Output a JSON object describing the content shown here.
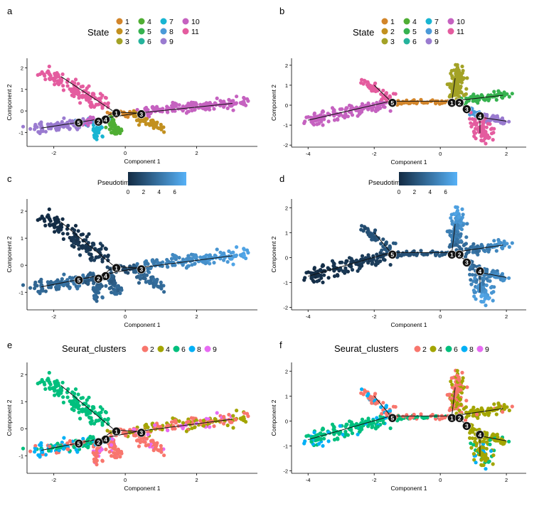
{
  "figure": {
    "panels": [
      {
        "id": "a",
        "letter": "a",
        "color_mode": "state",
        "legend": {
          "kind": "categorical",
          "title": "State",
          "placement": "top",
          "entries": [
            {
              "label": "1",
              "color": "#d2852a"
            },
            {
              "label": "2",
              "color": "#c2901f"
            },
            {
              "label": "3",
              "color": "#a3a226"
            },
            {
              "label": "4",
              "color": "#4fae33"
            },
            {
              "label": "5",
              "color": "#36b24f"
            },
            {
              "label": "6",
              "color": "#25b39c"
            },
            {
              "label": "7",
              "color": "#18b5d2"
            },
            {
              "label": "8",
              "color": "#4a9ad8"
            },
            {
              "label": "9",
              "color": "#9a7bd0"
            },
            {
              "label": "10",
              "color": "#c562c0"
            },
            {
              "label": "11",
              "color": "#e45c9f"
            }
          ]
        }
      },
      {
        "id": "b",
        "letter": "b",
        "color_mode": "state",
        "legend": {
          "kind": "categorical",
          "title": "State",
          "placement": "top",
          "entries": [
            {
              "label": "1",
              "color": "#d2852a"
            },
            {
              "label": "2",
              "color": "#c2901f"
            },
            {
              "label": "3",
              "color": "#a3a226"
            },
            {
              "label": "4",
              "color": "#4fae33"
            },
            {
              "label": "5",
              "color": "#36b24f"
            },
            {
              "label": "6",
              "color": "#25b39c"
            },
            {
              "label": "7",
              "color": "#18b5d2"
            },
            {
              "label": "8",
              "color": "#4a9ad8"
            },
            {
              "label": "9",
              "color": "#9a7bd0"
            },
            {
              "label": "10",
              "color": "#c562c0"
            },
            {
              "label": "11",
              "color": "#e45c9f"
            }
          ]
        }
      },
      {
        "id": "c",
        "letter": "c",
        "color_mode": "pseudotime",
        "legend": {
          "kind": "gradient",
          "title": "Pseudotime",
          "placement": "top",
          "ticks": [
            "0",
            "2",
            "4",
            "6"
          ],
          "range": [
            0,
            7.5
          ],
          "colors": [
            "#132b43",
            "#56b1f7"
          ]
        }
      },
      {
        "id": "d",
        "letter": "d",
        "color_mode": "pseudotime",
        "legend": {
          "kind": "gradient",
          "title": "Pseudotime",
          "placement": "top",
          "ticks": [
            "0",
            "2",
            "4",
            "6"
          ],
          "range": [
            0,
            7.5
          ],
          "colors": [
            "#132b43",
            "#56b1f7"
          ]
        }
      },
      {
        "id": "e",
        "letter": "e",
        "color_mode": "cluster",
        "legend": {
          "kind": "categorical",
          "title": "Seurat_clusters",
          "placement": "top",
          "entries": [
            {
              "label": "2",
              "color": "#f8766d"
            },
            {
              "label": "4",
              "color": "#a3a500"
            },
            {
              "label": "6",
              "color": "#00bf7d"
            },
            {
              "label": "8",
              "color": "#00b0f6"
            },
            {
              "label": "9",
              "color": "#e76bf3"
            }
          ]
        }
      },
      {
        "id": "f",
        "letter": "f",
        "color_mode": "cluster",
        "legend": {
          "kind": "categorical",
          "title": "Seurat_clusters",
          "placement": "top",
          "entries": [
            {
              "label": "2",
              "color": "#f8766d"
            },
            {
              "label": "4",
              "color": "#a3a500"
            },
            {
              "label": "6",
              "color": "#00bf7d"
            },
            {
              "label": "8",
              "color": "#00b0f6"
            },
            {
              "label": "9",
              "color": "#e76bf3"
            }
          ]
        }
      }
    ]
  },
  "chart_data": [
    {
      "panel": "a",
      "type": "scatter",
      "title": "",
      "xlabel": "Component 1",
      "ylabel": "Component 2",
      "xlim": [
        -2.75,
        3.7
      ],
      "ylim": [
        -1.65,
        2.45
      ],
      "xticks": [
        -2,
        0,
        2
      ],
      "yticks": [
        -1,
        0,
        1,
        2
      ],
      "grid": false,
      "legend_placement": "top",
      "trajectory": [
        [
          -1.8,
          1.6
        ],
        [
          -0.3,
          -0.05
        ],
        [
          -0.3,
          -0.05
        ],
        [
          0.35,
          -0.1
        ],
        [
          0.35,
          -0.1
        ],
        [
          3.0,
          0.35
        ],
        [
          -0.3,
          -0.05
        ],
        [
          -0.75,
          -0.45
        ],
        [
          -2.35,
          -0.8
        ],
        [
          0.35,
          -0.1
        ],
        [
          0.95,
          -0.65
        ]
      ],
      "branch_points": [
        {
          "label": "1",
          "x": -0.25,
          "y": -0.1
        },
        {
          "label": "3",
          "x": 0.45,
          "y": -0.15
        },
        {
          "label": "4",
          "x": -0.55,
          "y": -0.4
        },
        {
          "label": "2",
          "x": -0.75,
          "y": -0.5
        },
        {
          "label": "5",
          "x": -1.3,
          "y": -0.55
        }
      ],
      "segments": [
        {
          "state": "11",
          "from": [
            -2.3,
            1.9
          ],
          "to": [
            -0.55,
            0.15
          ],
          "spread": 0.15,
          "count": 130,
          "pt": [
            0.0,
            0.9
          ],
          "cl": {
            "9": 0,
            "6": 1
          }
        },
        {
          "state": "1",
          "from": [
            -0.45,
            -0.1
          ],
          "to": [
            0.3,
            -0.15
          ],
          "spread": 0.06,
          "count": 25,
          "pt": [
            1.6,
            1.9
          ],
          "cl": {
            "2": 0.6,
            "4": 0.4
          }
        },
        {
          "state": "10",
          "from": [
            0.35,
            -0.05
          ],
          "to": [
            3.35,
            0.4
          ],
          "spread": 0.11,
          "count": 160,
          "pt": [
            4.2,
            6.8
          ],
          "cl": {
            "2": 0.4,
            "4": 0.5,
            "9": 0.1
          }
        },
        {
          "state": "2",
          "from": [
            0.3,
            -0.2
          ],
          "to": [
            1.0,
            -0.75
          ],
          "spread": 0.09,
          "count": 55,
          "pt": [
            3.0,
            3.8
          ],
          "cl": {
            "2": 0.9,
            "9": 0.1
          }
        },
        {
          "state": "4",
          "from": [
            -0.45,
            -0.35
          ],
          "to": [
            -0.2,
            -1.1
          ],
          "spread": 0.08,
          "count": 55,
          "pt": [
            2.6,
            3.6
          ],
          "cl": {
            "2": 0.9,
            "9": 0.1
          }
        },
        {
          "state": "7",
          "from": [
            -0.75,
            -0.5
          ],
          "to": [
            -0.8,
            -1.25
          ],
          "spread": 0.07,
          "count": 45,
          "pt": [
            2.8,
            3.7
          ],
          "cl": {
            "2": 0.85,
            "9": 0.15
          }
        },
        {
          "state": "8",
          "from": [
            -1.25,
            -0.6
          ],
          "to": [
            -0.5,
            -0.4
          ],
          "spread": 0.07,
          "count": 30,
          "pt": [
            2.2,
            2.5
          ],
          "cl": {
            "8": 0.6,
            "6": 0.4
          }
        },
        {
          "state": "10",
          "from": [
            -1.25,
            -0.6
          ],
          "to": [
            -0.85,
            -0.25
          ],
          "spread": 0.07,
          "count": 18,
          "pt": [
            2.6,
            3.0
          ],
          "cl": {
            "6": 1
          }
        },
        {
          "state": "9",
          "from": [
            -2.5,
            -0.85
          ],
          "to": [
            -1.3,
            -0.6
          ],
          "spread": 0.12,
          "count": 85,
          "pt": [
            3.2,
            4.2
          ],
          "cl": {
            "8": 0.55,
            "6": 0.25,
            "2": 0.2
          }
        }
      ]
    },
    {
      "panel": "b",
      "type": "scatter",
      "title": "",
      "xlabel": "Component 1",
      "ylabel": "Component 2",
      "xlim": [
        -4.5,
        2.6
      ],
      "ylim": [
        -2.1,
        2.35
      ],
      "xticks": [
        -4,
        -2,
        0,
        2
      ],
      "yticks": [
        -2,
        -1,
        0,
        1,
        2
      ],
      "grid": false,
      "legend_placement": "top",
      "trajectory": [
        [
          -4.0,
          -0.75
        ],
        [
          -1.5,
          0.2
        ],
        [
          -1.5,
          0.2
        ],
        [
          -2.0,
          1.0
        ],
        [
          -1.5,
          0.2
        ],
        [
          0.35,
          0.2
        ],
        [
          0.35,
          0.2
        ],
        [
          0.45,
          1.35
        ],
        [
          0.35,
          0.2
        ],
        [
          1.9,
          0.5
        ],
        [
          0.35,
          0.2
        ],
        [
          0.85,
          -0.15
        ],
        [
          1.2,
          -0.6
        ],
        [
          2.0,
          -0.8
        ],
        [
          1.2,
          -0.6
        ],
        [
          1.2,
          -1.4
        ]
      ],
      "branch_points": [
        {
          "label": "5",
          "x": -1.45,
          "y": 0.12
        },
        {
          "label": "1",
          "x": 0.35,
          "y": 0.12
        },
        {
          "label": "2",
          "x": 0.58,
          "y": 0.12
        },
        {
          "label": "3",
          "x": 0.8,
          "y": -0.2
        },
        {
          "label": "4",
          "x": 1.2,
          "y": -0.55
        }
      ],
      "segments": [
        {
          "state": "10",
          "from": [
            -4.1,
            -0.8
          ],
          "to": [
            -1.6,
            0.05
          ],
          "spread": 0.14,
          "count": 150,
          "pt": [
            0.0,
            1.2
          ],
          "cl": {
            "6": 0.85,
            "8": 0.15
          }
        },
        {
          "state": "11",
          "from": [
            -2.3,
            1.2
          ],
          "to": [
            -1.55,
            0.3
          ],
          "spread": 0.1,
          "count": 50,
          "pt": [
            2.0,
            2.6
          ],
          "cl": {
            "8": 0.5,
            "2": 0.5
          }
        },
        {
          "state": "1",
          "from": [
            -1.4,
            0.15
          ],
          "to": [
            0.3,
            0.15
          ],
          "spread": 0.05,
          "count": 55,
          "pt": [
            2.0,
            2.6
          ],
          "cl": {
            "2": 0.5,
            "6": 0.5
          }
        },
        {
          "state": "3",
          "from": [
            0.45,
            0.35
          ],
          "to": [
            0.55,
            1.85
          ],
          "spread": 0.12,
          "count": 110,
          "pt": [
            3.0,
            6.8
          ],
          "cl": {
            "2": 0.55,
            "4": 0.45
          }
        },
        {
          "state": "5",
          "from": [
            0.65,
            0.25
          ],
          "to": [
            2.0,
            0.55
          ],
          "spread": 0.1,
          "count": 70,
          "pt": [
            3.0,
            6.0
          ],
          "cl": {
            "4": 0.9,
            "2": 0.1
          }
        },
        {
          "state": "8",
          "from": [
            0.85,
            -0.2
          ],
          "to": [
            1.2,
            -0.55
          ],
          "spread": 0.06,
          "count": 20,
          "pt": [
            3.2,
            3.8
          ],
          "cl": {
            "4": 1
          }
        },
        {
          "state": "9",
          "from": [
            1.25,
            -0.55
          ],
          "to": [
            2.0,
            -0.85
          ],
          "spread": 0.1,
          "count": 50,
          "pt": [
            4.0,
            6.0
          ],
          "cl": {
            "4": 0.9,
            "6": 0.1
          }
        },
        {
          "state": "11",
          "from": [
            1.1,
            -0.65
          ],
          "to": [
            1.4,
            -1.75
          ],
          "spread": 0.14,
          "count": 80,
          "pt": [
            4.2,
            6.8
          ],
          "cl": {
            "4": 0.7,
            "6": 0.15,
            "8": 0.15
          }
        }
      ]
    },
    {
      "panel": "c",
      "type": "scatter",
      "title": "",
      "xlabel": "Component 1",
      "ylabel": "Component 2",
      "xlim": [
        -2.75,
        3.7
      ],
      "ylim": [
        -1.65,
        2.45
      ],
      "xticks": [
        -2,
        0,
        2
      ],
      "yticks": [
        -1,
        0,
        1,
        2
      ],
      "grid": false,
      "legend_placement": "top",
      "same_points_as": "a"
    },
    {
      "panel": "d",
      "type": "scatter",
      "title": "",
      "xlabel": "Component 1",
      "ylabel": "Component 2",
      "xlim": [
        -4.5,
        2.6
      ],
      "ylim": [
        -2.1,
        2.35
      ],
      "xticks": [
        -4,
        -2,
        0,
        2
      ],
      "yticks": [
        -2,
        -1,
        0,
        1,
        2
      ],
      "grid": false,
      "legend_placement": "top",
      "same_points_as": "b"
    },
    {
      "panel": "e",
      "type": "scatter",
      "title": "",
      "xlabel": "Component 1",
      "ylabel": "Component 2",
      "xlim": [
        -2.75,
        3.7
      ],
      "ylim": [
        -1.65,
        2.45
      ],
      "xticks": [
        -2,
        0,
        2
      ],
      "yticks": [
        -1,
        0,
        1,
        2
      ],
      "grid": false,
      "legend_placement": "top",
      "same_points_as": "a"
    },
    {
      "panel": "f",
      "type": "scatter",
      "title": "",
      "xlabel": "Component 1",
      "ylabel": "Component 2",
      "xlim": [
        -4.5,
        2.6
      ],
      "ylim": [
        -2.1,
        2.35
      ],
      "xticks": [
        -4,
        -2,
        0,
        2
      ],
      "yticks": [
        -2,
        -1,
        0,
        1,
        2
      ],
      "grid": false,
      "legend_placement": "top",
      "same_points_as": "b"
    }
  ]
}
